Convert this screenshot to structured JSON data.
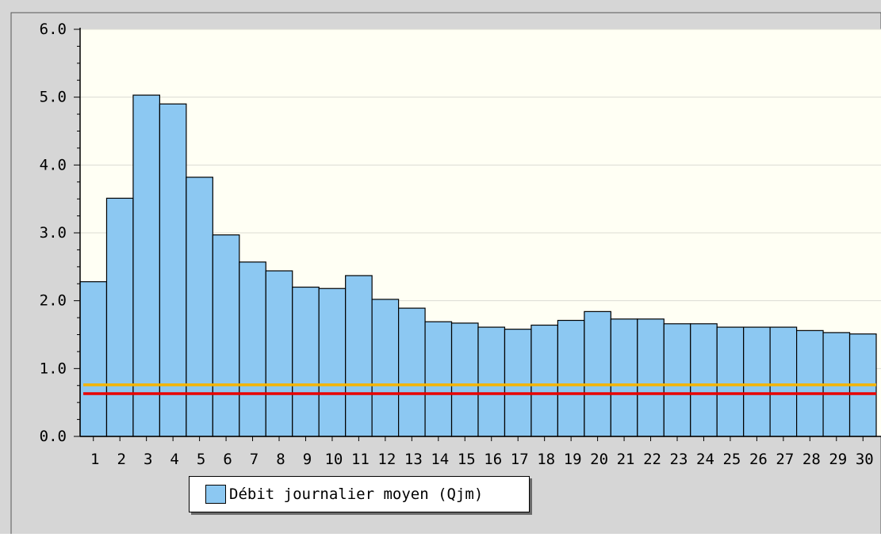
{
  "chart_data": {
    "type": "bar",
    "categories": [
      "1",
      "2",
      "3",
      "4",
      "5",
      "6",
      "7",
      "8",
      "9",
      "10",
      "11",
      "12",
      "13",
      "14",
      "15",
      "16",
      "17",
      "18",
      "19",
      "20",
      "21",
      "22",
      "23",
      "24",
      "25",
      "26",
      "27",
      "28",
      "29",
      "30"
    ],
    "series": [
      {
        "name": "Débit journalier moyen (Qjm)",
        "values": [
          2.28,
          3.51,
          5.03,
          4.9,
          3.82,
          2.97,
          2.57,
          2.44,
          2.2,
          2.18,
          2.37,
          2.02,
          1.89,
          1.69,
          1.67,
          1.61,
          1.58,
          1.64,
          1.71,
          1.84,
          1.73,
          1.73,
          1.66,
          1.66,
          1.61,
          1.61,
          1.61,
          1.56,
          1.53,
          1.51
        ],
        "color": "#8cc8f2"
      }
    ],
    "reference_lines": [
      {
        "value": 0.76,
        "color": "#f5b400"
      },
      {
        "value": 0.63,
        "color": "#e80000"
      }
    ],
    "yticks": [
      "0.0",
      "1.0",
      "2.0",
      "3.0",
      "4.0",
      "5.0",
      "6.0"
    ],
    "ylim": [
      0,
      6
    ],
    "grid": true,
    "legend_position": "bottom-left"
  }
}
